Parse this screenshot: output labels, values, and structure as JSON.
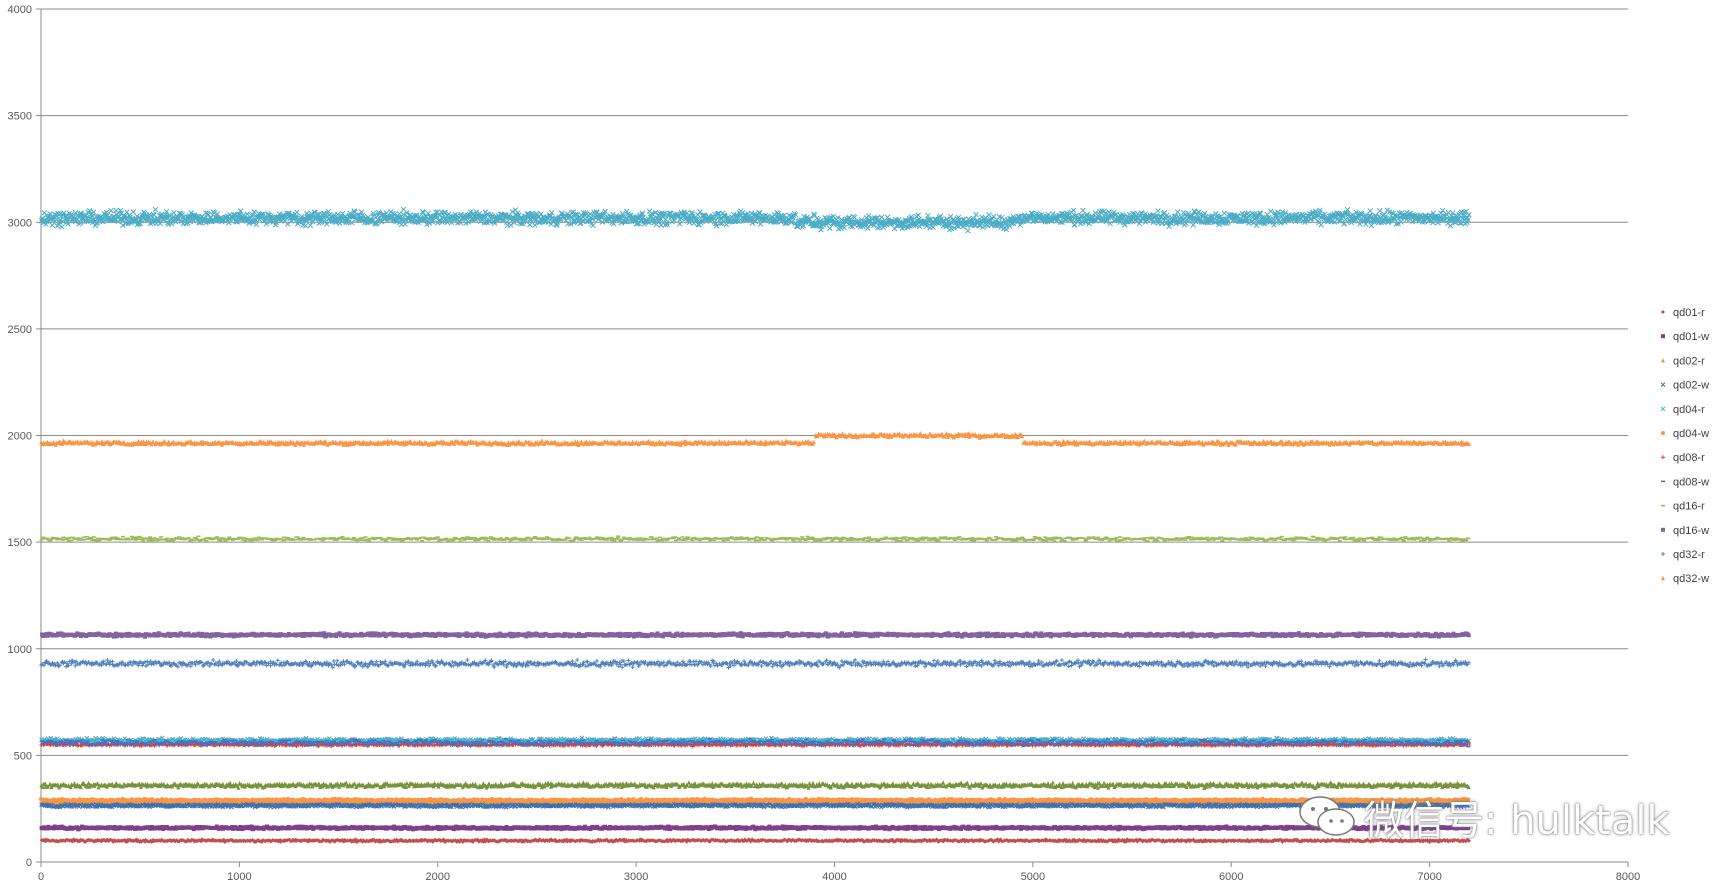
{
  "chart_data": {
    "type": "scatter",
    "xlim": [
      0,
      8000
    ],
    "ylim": [
      0,
      4000
    ],
    "x_ticks": [
      0,
      1000,
      2000,
      3000,
      4000,
      5000,
      6000,
      7000,
      8000
    ],
    "y_ticks": [
      0,
      500,
      1000,
      1500,
      2000,
      2500,
      3000,
      3500,
      4000
    ],
    "x_tick_labels": [
      "0",
      "1000",
      "2000",
      "3000",
      "4000",
      "5000",
      "6000",
      "7000",
      "8000"
    ],
    "y_tick_labels": [
      "0",
      "500",
      "1000",
      "1500",
      "2000",
      "2500",
      "3000",
      "3500",
      "4000"
    ],
    "grid": "horizontal",
    "legend_position": "right",
    "x_range_data": [
      0,
      7200
    ],
    "series": [
      {
        "name": "qd01-r",
        "color": "#C0504D",
        "marker": "diamond",
        "level": 100,
        "spread": 8
      },
      {
        "name": "qd01-w",
        "color": "#7F3F8C",
        "marker": "square",
        "level": 160,
        "spread": 8
      },
      {
        "name": "qd02-r",
        "color": "#E39F3B",
        "marker": "triangle",
        "level": 280,
        "spread": 10
      },
      {
        "name": "qd02-w",
        "color": "#3F6FB0",
        "marker": "x",
        "level": 265,
        "spread": 10
      },
      {
        "name": "qd04-r",
        "color": "#4BACC6",
        "marker": "x",
        "level": 570,
        "spread": 14
      },
      {
        "name": "qd04-w",
        "color": "#F79646",
        "marker": "circle",
        "level": 290,
        "spread": 8
      },
      {
        "name": "qd08-r",
        "color": "#D9413A",
        "marker": "plus",
        "level": 550,
        "spread": 8
      },
      {
        "name": "qd08-w",
        "color": "#4472C4",
        "marker": "dash",
        "level": 560,
        "spread": 20
      },
      {
        "name": "qd16-r",
        "color": "#9BBB59",
        "marker": "dash",
        "level": 1515,
        "spread": 14
      },
      {
        "name": "qd16-w",
        "color": "#8064A2",
        "marker": "square",
        "level": 1065,
        "spread": 10
      },
      {
        "name": "qd32-r",
        "color": "#4F81BD",
        "marker": "plus",
        "level": 930,
        "spread": 20
      },
      {
        "name": "qd32-w",
        "color": "#F79646",
        "marker": "triangle",
        "level": 1965,
        "spread": 12
      }
    ],
    "extra_bands": [
      {
        "series": "qd04-r",
        "level": 3020,
        "spread": 45,
        "color": "#4BACC6"
      },
      {
        "series": "qd02-r",
        "level": 360,
        "spread": 14,
        "color": "#77933C"
      }
    ]
  },
  "watermark": {
    "text": "微信号: hulktalk"
  }
}
